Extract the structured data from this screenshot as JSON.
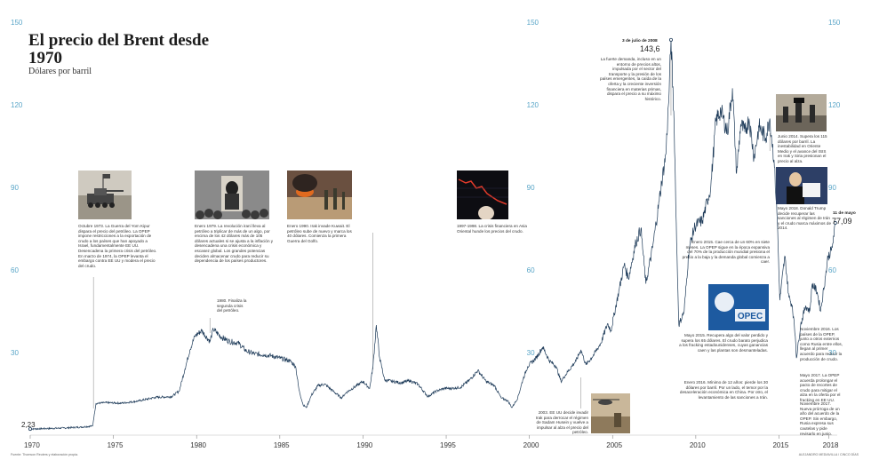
{
  "header": {
    "title": "El precio del Brent desde 1970",
    "subtitle": "Dólares por barril"
  },
  "chart_data": {
    "type": "line",
    "title": "El precio del Brent desde 1970",
    "subtitle": "Dólares por barril",
    "xlabel": "",
    "ylabel": "",
    "xlim": [
      1970,
      2018.5
    ],
    "ylim": [
      0,
      150
    ],
    "x_ticks": [
      "1970",
      "1975",
      "1980",
      "1985",
      "1990",
      "1995",
      "2000",
      "2005",
      "2010",
      "2015",
      "2018"
    ],
    "y_ticks": [
      "30",
      "60",
      "90",
      "120",
      "150"
    ],
    "grid": false,
    "series": [
      {
        "points": [
          [
            1970.0,
            2.23
          ],
          [
            1971.0,
            2.4
          ],
          [
            1972.0,
            2.6
          ],
          [
            1973.0,
            2.9
          ],
          [
            1973.75,
            3.3
          ],
          [
            1973.95,
            11.5
          ],
          [
            1974.5,
            11.8
          ],
          [
            1975.5,
            11.6
          ],
          [
            1976.5,
            12.4
          ],
          [
            1977.5,
            13.7
          ],
          [
            1978.5,
            14.0
          ],
          [
            1978.95,
            16.0
          ],
          [
            1979.3,
            24.0
          ],
          [
            1979.6,
            31.0
          ],
          [
            1979.9,
            36.0
          ],
          [
            1980.3,
            38.0
          ],
          [
            1980.8,
            34.0
          ],
          [
            1981.0,
            38.5
          ],
          [
            1981.5,
            35.5
          ],
          [
            1982.0,
            34.0
          ],
          [
            1982.5,
            33.5
          ],
          [
            1983.0,
            30.5
          ],
          [
            1983.5,
            29.5
          ],
          [
            1984.0,
            29.2
          ],
          [
            1984.5,
            28.8
          ],
          [
            1985.0,
            28.0
          ],
          [
            1985.6,
            27.0
          ],
          [
            1985.95,
            25.0
          ],
          [
            1986.15,
            16.5
          ],
          [
            1986.4,
            11.0
          ],
          [
            1986.6,
            10.0
          ],
          [
            1986.9,
            14.5
          ],
          [
            1987.3,
            18.0
          ],
          [
            1987.7,
            18.5
          ],
          [
            1988.2,
            16.0
          ],
          [
            1988.7,
            13.5
          ],
          [
            1989.0,
            15.5
          ],
          [
            1989.5,
            17.5
          ],
          [
            1990.0,
            19.5
          ],
          [
            1990.4,
            17.0
          ],
          [
            1990.6,
            25.0
          ],
          [
            1990.8,
            40.0
          ],
          [
            1991.0,
            28.0
          ],
          [
            1991.3,
            20.0
          ],
          [
            1991.8,
            19.5
          ],
          [
            1992.3,
            19.0
          ],
          [
            1992.8,
            19.8
          ],
          [
            1993.3,
            18.5
          ],
          [
            1993.9,
            14.0
          ],
          [
            1994.4,
            16.0
          ],
          [
            1994.9,
            17.0
          ],
          [
            1995.4,
            17.0
          ],
          [
            1995.9,
            17.5
          ],
          [
            1996.4,
            20.0
          ],
          [
            1996.9,
            23.5
          ],
          [
            1997.4,
            19.5
          ],
          [
            1997.9,
            18.0
          ],
          [
            1998.3,
            13.5
          ],
          [
            1998.7,
            12.5
          ],
          [
            1998.95,
            10.0
          ],
          [
            1999.3,
            13.5
          ],
          [
            1999.6,
            20.0
          ],
          [
            1999.9,
            25.0
          ],
          [
            2000.4,
            28.0
          ],
          [
            2000.8,
            32.0
          ],
          [
            2001.2,
            27.0
          ],
          [
            2001.6,
            25.0
          ],
          [
            2001.9,
            19.5
          ],
          [
            2002.3,
            23.0
          ],
          [
            2002.8,
            27.0
          ],
          [
            2003.1,
            31.0
          ],
          [
            2003.4,
            25.5
          ],
          [
            2003.9,
            29.5
          ],
          [
            2004.3,
            33.5
          ],
          [
            2004.7,
            40.5
          ],
          [
            2004.9,
            38.0
          ],
          [
            2005.4,
            53.0
          ],
          [
            2005.7,
            62.0
          ],
          [
            2005.95,
            57.0
          ],
          [
            2006.4,
            70.0
          ],
          [
            2006.7,
            75.0
          ],
          [
            2007.0,
            55.0
          ],
          [
            2007.4,
            68.0
          ],
          [
            2007.8,
            85.0
          ],
          [
            2007.95,
            92.0
          ],
          [
            2008.2,
            102.0
          ],
          [
            2008.4,
            125.0
          ],
          [
            2008.51,
            143.6
          ],
          [
            2008.7,
            113.0
          ],
          [
            2008.85,
            70.0
          ],
          [
            2008.98,
            40.0
          ],
          [
            2009.3,
            45.0
          ],
          [
            2009.6,
            68.0
          ],
          [
            2009.95,
            76.0
          ],
          [
            2010.4,
            78.0
          ],
          [
            2010.9,
            90.0
          ],
          [
            2011.2,
            114.0
          ],
          [
            2011.5,
            118.0
          ],
          [
            2011.9,
            110.0
          ],
          [
            2012.2,
            126.0
          ],
          [
            2012.45,
            95.0
          ],
          [
            2012.7,
            113.0
          ],
          [
            2012.95,
            110.0
          ],
          [
            2013.2,
            115.0
          ],
          [
            2013.5,
            101.0
          ],
          [
            2013.8,
            112.0
          ],
          [
            2014.2,
            108.0
          ],
          [
            2014.45,
            115.0
          ],
          [
            2014.7,
            100.0
          ],
          [
            2014.9,
            78.0
          ],
          [
            2015.05,
            49.0
          ],
          [
            2015.35,
            65.0
          ],
          [
            2015.6,
            50.0
          ],
          [
            2015.8,
            47.0
          ],
          [
            2015.98,
            36.0
          ],
          [
            2016.05,
            28.0
          ],
          [
            2016.3,
            40.0
          ],
          [
            2016.6,
            47.0
          ],
          [
            2016.85,
            45.0
          ],
          [
            2017.0,
            55.0
          ],
          [
            2017.3,
            52.0
          ],
          [
            2017.5,
            45.0
          ],
          [
            2017.8,
            58.0
          ],
          [
            2017.95,
            65.0
          ],
          [
            2018.15,
            67.0
          ],
          [
            2018.3,
            72.0
          ],
          [
            2018.38,
            77.09
          ]
        ]
      }
    ],
    "labeled_points": [
      {
        "label": "2,23",
        "x": 1970.0,
        "y": 2.23
      },
      {
        "label": "143,6",
        "date": "3 de julio de 2008",
        "x": 2008.51,
        "y": 143.6
      },
      {
        "label": "77,09",
        "date": "11 de mayo",
        "x": 2018.38,
        "y": 77.09
      }
    ]
  },
  "annotations": [
    {
      "id": "a1973",
      "x_year": 1973.8,
      "text": "Octubre 1973. La Guerra del Yom Kipur dispara el precio del petróleo. La OPEP impone restricciones a la exportación de crudo a los países que han apoyado a Israel, fundamentalmente EE UU. Desencadena la primera crisis del petróleo. En marzo de 1974, la OPEP levanta el embargo contra EE UU y modera el precio del crudo."
    },
    {
      "id": "a1979",
      "x_year": 1979.0,
      "text": "Enero 1979. La revolución iraní lleva al petróleo a triplicar de más de un algo, por encima de los 42 dólares más de 105 dólares actuales si se ajusta a la inflación y desencadena una crisis económica y escasez global. Los grandes potencias deciden almacenar crudo para reducir su dependencia de los países productores."
    },
    {
      "id": "a1980",
      "x_year": 1980.8,
      "text": "1980. Finaliza la segunda crisis del petróleo."
    },
    {
      "id": "a1990",
      "x_year": 1990.6,
      "text": "Enero 1990. Irak invade Kuwait. El petróleo sube de nuevo y marca los 40 dólares. Comienza la primera Guerra del Golfo."
    },
    {
      "id": "a1997",
      "x_year": 1997.9,
      "text": "1997-1998. La crisis financiera en Asia Oriental hunde los precios del crudo."
    },
    {
      "id": "a2003",
      "x_year": 2003.1,
      "text": "2003. EE UU decide invadir Irak para derrocar el régimen de Sadam Husein y vuelve a impulsar al alza el precio del petróleo."
    },
    {
      "id": "a2008",
      "x_year": 2008.51,
      "text": "La fuerte demanda, incluso en un entorno de precios altos, impulsada por el sector del transporte y la presión de los países emergentes, la caída de la oferta y la creciente inversión financiera en materias primas, dispara el precio a su máximo histórico."
    },
    {
      "id": "a2014",
      "x_year": 2014.45,
      "text": "Junio 2014. Supera los 115 dólares por barril. La inestabilidad en Oriente Medio y el avance del ISIS en Irak y Siria presionan el precio al alza."
    },
    {
      "id": "a2015",
      "x_year": 2015.1,
      "text": "Enero 2015. Cae cerca de un 60% en siete meses. La OPEP sigue en la época expansiva del 70% de la producción mundial presiona el precio a la baja y la demanda global comienza a caer."
    },
    {
      "id": "a2015b",
      "x_year": 2015.4,
      "text": "Mayo 2015. Recupera algo del valor perdido y supera los 65 dólares. El crudo barato perjudica a los fracking estadounidenses, cuyas ganancias caen y las plantas son desmanteladas."
    },
    {
      "id": "a2016",
      "x_year": 2016.05,
      "text": "Enero 2016. Mínimo de 12 años: pierde los 30 dólares por barril. Por un lado, el temor por la desaceleración económica en China. Por otro, el levantamiento de las sanciones a Irán."
    },
    {
      "id": "a2016b",
      "x_year": 2016.9,
      "text": "Noviembre 2016. Los países de la OPEP, junto a otros externos como Rusia entre ellos, llegan al primer acuerdo para reducir la producción de crudo."
    },
    {
      "id": "a2017",
      "x_year": 2017.4,
      "text": "Mayo 2017. La OPEP acuerda prolongar el pacto de recortes de crudo para mitigar el alza en la oferta por el fracking en EE UU."
    },
    {
      "id": "a2017b",
      "x_year": 2017.85,
      "text": "Noviembre 2017. Nueva prórroga de un año del acuerdo de la OPEP. Sin embargo, Rusia expresa sus cautelas y pide revisarlo en junio."
    },
    {
      "id": "a2018",
      "x_year": 2018.35,
      "text": "Mayo 2018. Donald Trump decide recuperar las sanciones al régimen de Irán y el crudo marca máximos de 2014."
    }
  ],
  "photos": [
    {
      "id": "p1973",
      "icon": "tank-photo-icon",
      "x_year": 1973.8
    },
    {
      "id": "p1979",
      "icon": "khomeini-photo-icon",
      "x_year": 1980.0
    },
    {
      "id": "p1990",
      "icon": "oil-fire-photo-icon",
      "x_year": 1990.5
    },
    {
      "id": "p1997",
      "icon": "stock-chart-photo-icon",
      "x_year": 1997.9
    },
    {
      "id": "p2003",
      "icon": "helicopter-photo-icon",
      "x_year": 2003.1
    },
    {
      "id": "p2014",
      "icon": "soldiers-photo-icon",
      "x_year": 2014.5
    },
    {
      "id": "p2015",
      "icon": "opec-photo-icon",
      "x_year": 2015.5
    },
    {
      "id": "p2018",
      "icon": "trump-photo-icon",
      "x_year": 2018.0
    }
  ],
  "footer": {
    "source": "Fuente: Thomson Reuters y elaboración propia.",
    "credit": "ALEJANDRO MEDIAVILLA / CINCO DÍAS"
  },
  "colors": {
    "line": "#1f3c5a",
    "axis_ticks": "#5aa6c8",
    "guide_line": "#666666"
  }
}
